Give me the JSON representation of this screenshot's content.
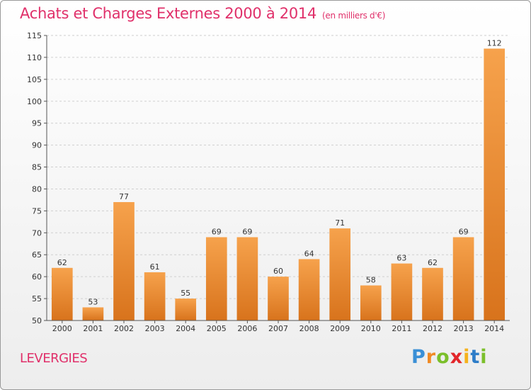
{
  "header": {
    "title": "Achats et Charges Externes 2000 à 2014",
    "subtitle": "(en milliers d'€)"
  },
  "footer": {
    "commune": "LEVERGIES",
    "logo": {
      "letters": [
        "P",
        "r",
        "o",
        "x",
        "i",
        "t",
        "i"
      ],
      "colors": [
        "#3a8fd6",
        "#f08a24",
        "#7bbf2a",
        "#e2262a",
        "#f5b21c",
        "#2e7dc8",
        "#7bbf2a"
      ]
    }
  },
  "chart_data": {
    "type": "bar",
    "categories": [
      "2000",
      "2001",
      "2002",
      "2003",
      "2004",
      "2005",
      "2006",
      "2007",
      "2008",
      "2009",
      "2010",
      "2011",
      "2012",
      "2013",
      "2014"
    ],
    "values": [
      62,
      53,
      77,
      61,
      55,
      69,
      69,
      60,
      64,
      71,
      58,
      63,
      62,
      69,
      112
    ],
    "title": "Achats et Charges Externes 2000 à 2014",
    "ylim": [
      50,
      115
    ],
    "yticks": [
      50,
      55,
      60,
      65,
      70,
      75,
      80,
      85,
      90,
      95,
      100,
      105,
      110,
      115
    ],
    "grid": true,
    "bar_color": "#f0902e"
  }
}
